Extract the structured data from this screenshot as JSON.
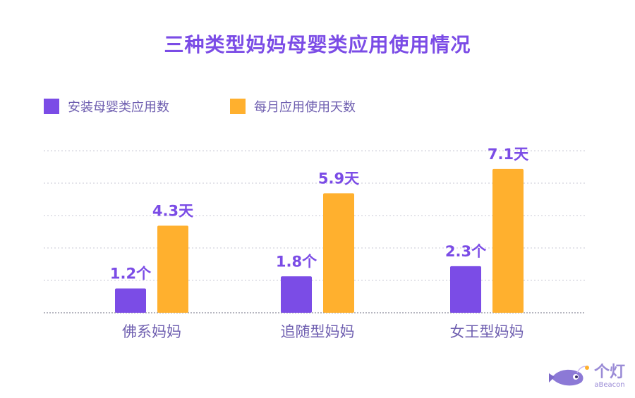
{
  "chart_data": {
    "type": "bar",
    "title": "三种类型妈妈母婴类应用使用情况",
    "categories": [
      "佛系妈妈",
      "追随型妈妈",
      "女王型妈妈"
    ],
    "series": [
      {
        "name": "安装母婴类应用数",
        "values": [
          1.2,
          1.8,
          2.3
        ],
        "labels": [
          "1.2个",
          "1.8个",
          "2.3个"
        ],
        "color": "#7B4CE6"
      },
      {
        "name": "每月应用使用天数",
        "values": [
          4.3,
          5.9,
          7.1
        ],
        "labels": [
          "4.3天",
          "5.9天",
          "7.1天"
        ],
        "color": "#FFB02E"
      }
    ],
    "ylim": [
      0,
      8
    ],
    "grid": true,
    "legend": "top-left"
  },
  "brand": {
    "name_cn": "个灯",
    "name_en": "aBeacon",
    "icon": "fish-mascot-icon"
  }
}
